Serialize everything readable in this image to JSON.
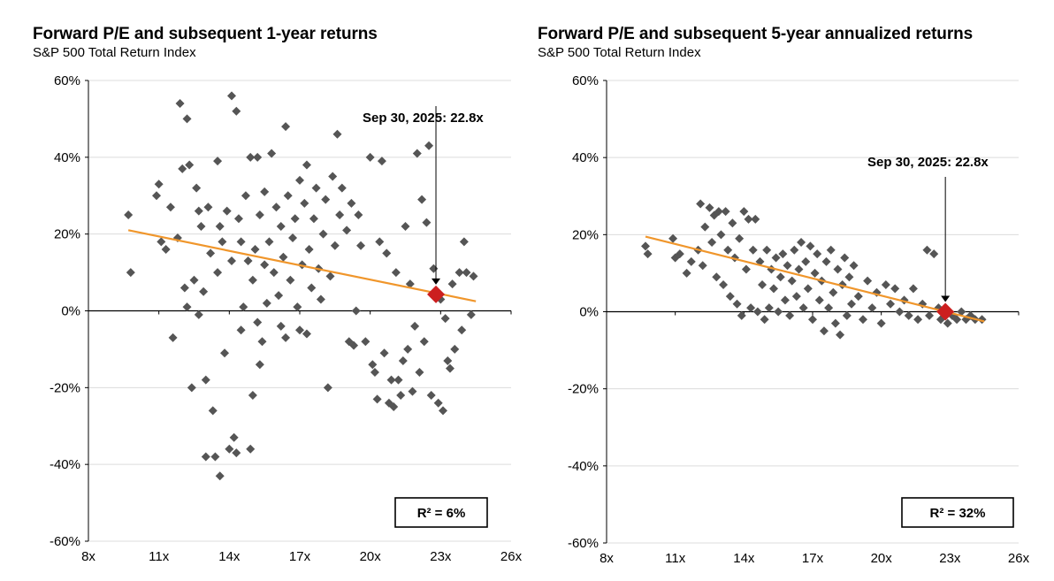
{
  "colors": {
    "points": "#555555",
    "trend": "#f0962b",
    "marker": "#cc1f1f",
    "axis": "#000000",
    "grid": "#dcdcdc"
  },
  "chart_data": [
    {
      "type": "scatter",
      "title": "Forward P/E and subsequent 1-year returns",
      "subtitle": "S&P 500 Total Return Index",
      "xlabel": "",
      "ylabel": "",
      "xlim": [
        8,
        26
      ],
      "ylim": [
        -60,
        60
      ],
      "x_ticks": [
        8,
        11,
        14,
        17,
        20,
        23,
        26
      ],
      "x_tick_labels": [
        "8x",
        "11x",
        "14x",
        "17x",
        "20x",
        "23x",
        "26x"
      ],
      "y_ticks": [
        60,
        40,
        20,
        0,
        -20,
        -40,
        -60
      ],
      "y_tick_labels": [
        "60%",
        "40%",
        "20%",
        "0%",
        "-20%",
        "-40%",
        "-60%"
      ],
      "grid": true,
      "trendline": {
        "x": [
          9.7,
          24.5
        ],
        "y": [
          21,
          2.5
        ]
      },
      "current": {
        "x": 22.8,
        "y": 4.3,
        "label": "Sep 30, 2025: 22.8x"
      },
      "r_squared_label": "R² = 6%",
      "points": [
        [
          9.7,
          25
        ],
        [
          9.8,
          10
        ],
        [
          10.9,
          30
        ],
        [
          11.0,
          33
        ],
        [
          11.1,
          18
        ],
        [
          11.3,
          16
        ],
        [
          11.5,
          27
        ],
        [
          11.6,
          -7
        ],
        [
          11.8,
          19
        ],
        [
          11.9,
          54
        ],
        [
          12.0,
          37
        ],
        [
          12.1,
          6
        ],
        [
          12.2,
          50
        ],
        [
          12.2,
          1
        ],
        [
          12.3,
          38
        ],
        [
          12.4,
          -20
        ],
        [
          12.5,
          8
        ],
        [
          12.6,
          32
        ],
        [
          12.7,
          26
        ],
        [
          12.7,
          -1
        ],
        [
          12.8,
          22
        ],
        [
          12.9,
          5
        ],
        [
          13.0,
          -18
        ],
        [
          13.0,
          -38
        ],
        [
          13.1,
          27
        ],
        [
          13.2,
          15
        ],
        [
          13.3,
          -26
        ],
        [
          13.4,
          -38
        ],
        [
          13.5,
          39
        ],
        [
          13.5,
          10
        ],
        [
          13.6,
          22
        ],
        [
          13.6,
          -43
        ],
        [
          13.7,
          18
        ],
        [
          13.8,
          -11
        ],
        [
          13.9,
          26
        ],
        [
          14.0,
          -36
        ],
        [
          14.1,
          56
        ],
        [
          14.1,
          13
        ],
        [
          14.2,
          -33
        ],
        [
          14.3,
          52
        ],
        [
          14.3,
          -37
        ],
        [
          14.4,
          24
        ],
        [
          14.5,
          -5
        ],
        [
          14.5,
          18
        ],
        [
          14.6,
          1
        ],
        [
          14.7,
          30
        ],
        [
          14.8,
          13
        ],
        [
          14.9,
          40
        ],
        [
          14.9,
          -36
        ],
        [
          15.0,
          -22
        ],
        [
          15.0,
          8
        ],
        [
          15.1,
          16
        ],
        [
          15.2,
          40
        ],
        [
          15.2,
          -3
        ],
        [
          15.3,
          -14
        ],
        [
          15.3,
          25
        ],
        [
          15.4,
          -8
        ],
        [
          15.5,
          31
        ],
        [
          15.5,
          12
        ],
        [
          15.6,
          2
        ],
        [
          15.7,
          18
        ],
        [
          15.8,
          41
        ],
        [
          15.9,
          10
        ],
        [
          16.0,
          27
        ],
        [
          16.1,
          4
        ],
        [
          16.2,
          22
        ],
        [
          16.2,
          -4
        ],
        [
          16.3,
          14
        ],
        [
          16.4,
          48
        ],
        [
          16.4,
          -7
        ],
        [
          16.5,
          30
        ],
        [
          16.6,
          8
        ],
        [
          16.7,
          19
        ],
        [
          16.8,
          24
        ],
        [
          16.9,
          1
        ],
        [
          17.0,
          34
        ],
        [
          17.0,
          -5
        ],
        [
          17.1,
          12
        ],
        [
          17.2,
          28
        ],
        [
          17.3,
          -6
        ],
        [
          17.3,
          38
        ],
        [
          17.4,
          16
        ],
        [
          17.5,
          6
        ],
        [
          17.6,
          24
        ],
        [
          17.7,
          32
        ],
        [
          17.8,
          11
        ],
        [
          17.9,
          3
        ],
        [
          18.0,
          20
        ],
        [
          18.1,
          29
        ],
        [
          18.2,
          -20
        ],
        [
          18.3,
          9
        ],
        [
          18.4,
          35
        ],
        [
          18.5,
          17
        ],
        [
          18.6,
          46
        ],
        [
          18.7,
          25
        ],
        [
          18.8,
          32
        ],
        [
          19.0,
          21
        ],
        [
          19.1,
          -8
        ],
        [
          19.2,
          28
        ],
        [
          19.3,
          -9
        ],
        [
          19.4,
          0
        ],
        [
          19.5,
          25
        ],
        [
          19.6,
          17
        ],
        [
          19.8,
          -8
        ],
        [
          20.0,
          40
        ],
        [
          20.1,
          -14
        ],
        [
          20.2,
          -16
        ],
        [
          20.3,
          -23
        ],
        [
          20.4,
          18
        ],
        [
          20.5,
          39
        ],
        [
          20.6,
          -11
        ],
        [
          20.7,
          15
        ],
        [
          20.8,
          -24
        ],
        [
          20.9,
          -18
        ],
        [
          21.0,
          -25
        ],
        [
          21.1,
          10
        ],
        [
          21.2,
          -18
        ],
        [
          21.3,
          -22
        ],
        [
          21.4,
          -13
        ],
        [
          21.5,
          22
        ],
        [
          21.6,
          -10
        ],
        [
          21.7,
          7
        ],
        [
          21.8,
          -21
        ],
        [
          21.9,
          -4
        ],
        [
          22.0,
          41
        ],
        [
          22.1,
          -16
        ],
        [
          22.2,
          29
        ],
        [
          22.3,
          -8
        ],
        [
          22.4,
          23
        ],
        [
          22.5,
          43
        ],
        [
          22.6,
          -22
        ],
        [
          22.7,
          11
        ],
        [
          22.9,
          -24
        ],
        [
          23.0,
          3
        ],
        [
          23.1,
          -26
        ],
        [
          23.2,
          -2
        ],
        [
          23.3,
          -13
        ],
        [
          23.4,
          -15
        ],
        [
          23.5,
          7
        ],
        [
          23.6,
          -10
        ],
        [
          23.8,
          10
        ],
        [
          23.9,
          -5
        ],
        [
          24.0,
          18
        ],
        [
          24.1,
          10
        ],
        [
          24.3,
          -1
        ],
        [
          24.4,
          9
        ]
      ]
    },
    {
      "type": "scatter",
      "title": "Forward P/E and subsequent 5-year annualized returns",
      "subtitle": "S&P 500 Total Return Index",
      "xlabel": "",
      "ylabel": "",
      "xlim": [
        8,
        26
      ],
      "ylim": [
        -60,
        60
      ],
      "x_ticks": [
        8,
        11,
        14,
        17,
        20,
        23,
        26
      ],
      "x_tick_labels": [
        "8x",
        "11x",
        "14x",
        "17x",
        "20x",
        "23x",
        "26x"
      ],
      "y_ticks": [
        60,
        40,
        20,
        0,
        -20,
        -40,
        -60
      ],
      "y_tick_labels": [
        "60%",
        "40%",
        "20%",
        "0%",
        "-20%",
        "-40%",
        "-60%"
      ],
      "grid": true,
      "trendline": {
        "x": [
          9.7,
          24.5
        ],
        "y": [
          19.5,
          -2.5
        ]
      },
      "current": {
        "x": 22.8,
        "y": 0,
        "label": "Sep 30, 2025: 22.8x"
      },
      "r_squared_label": "R² = 32%",
      "points": [
        [
          9.7,
          17
        ],
        [
          9.8,
          15
        ],
        [
          10.9,
          19
        ],
        [
          11.0,
          14
        ],
        [
          11.2,
          15
        ],
        [
          11.5,
          10
        ],
        [
          11.7,
          13
        ],
        [
          12.0,
          16
        ],
        [
          12.1,
          28
        ],
        [
          12.2,
          12
        ],
        [
          12.3,
          22
        ],
        [
          12.5,
          27
        ],
        [
          12.6,
          18
        ],
        [
          12.7,
          25
        ],
        [
          12.8,
          9
        ],
        [
          12.9,
          26
        ],
        [
          13.0,
          20
        ],
        [
          13.1,
          7
        ],
        [
          13.2,
          26
        ],
        [
          13.3,
          16
        ],
        [
          13.4,
          4
        ],
        [
          13.5,
          23
        ],
        [
          13.6,
          14
        ],
        [
          13.7,
          2
        ],
        [
          13.8,
          19
        ],
        [
          13.9,
          -1
        ],
        [
          14.0,
          26
        ],
        [
          14.1,
          11
        ],
        [
          14.2,
          24
        ],
        [
          14.3,
          1
        ],
        [
          14.4,
          16
        ],
        [
          14.5,
          24
        ],
        [
          14.6,
          0
        ],
        [
          14.7,
          13
        ],
        [
          14.8,
          7
        ],
        [
          14.9,
          -2
        ],
        [
          15.0,
          16
        ],
        [
          15.1,
          1
        ],
        [
          15.2,
          11
        ],
        [
          15.3,
          6
        ],
        [
          15.4,
          14
        ],
        [
          15.5,
          0
        ],
        [
          15.6,
          9
        ],
        [
          15.7,
          15
        ],
        [
          15.8,
          3
        ],
        [
          15.9,
          12
        ],
        [
          16.0,
          -1
        ],
        [
          16.1,
          8
        ],
        [
          16.2,
          16
        ],
        [
          16.3,
          4
        ],
        [
          16.4,
          11
        ],
        [
          16.5,
          18
        ],
        [
          16.6,
          1
        ],
        [
          16.7,
          13
        ],
        [
          16.8,
          6
        ],
        [
          16.9,
          17
        ],
        [
          17.0,
          -2
        ],
        [
          17.1,
          10
        ],
        [
          17.2,
          15
        ],
        [
          17.3,
          3
        ],
        [
          17.4,
          8
        ],
        [
          17.5,
          -5
        ],
        [
          17.6,
          13
        ],
        [
          17.7,
          1
        ],
        [
          17.8,
          16
        ],
        [
          17.9,
          5
        ],
        [
          18.0,
          -3
        ],
        [
          18.1,
          11
        ],
        [
          18.2,
          -6
        ],
        [
          18.3,
          7
        ],
        [
          18.4,
          14
        ],
        [
          18.5,
          -1
        ],
        [
          18.6,
          9
        ],
        [
          18.7,
          2
        ],
        [
          18.8,
          12
        ],
        [
          19.0,
          4
        ],
        [
          19.2,
          -2
        ],
        [
          19.4,
          8
        ],
        [
          19.6,
          1
        ],
        [
          19.8,
          5
        ],
        [
          20.0,
          -3
        ],
        [
          20.2,
          7
        ],
        [
          20.4,
          2
        ],
        [
          20.6,
          6
        ],
        [
          20.8,
          0
        ],
        [
          21.0,
          3
        ],
        [
          21.2,
          -1
        ],
        [
          21.4,
          6
        ],
        [
          21.6,
          -2
        ],
        [
          21.8,
          2
        ],
        [
          22.0,
          16
        ],
        [
          22.1,
          -1
        ],
        [
          22.3,
          15
        ],
        [
          22.5,
          1
        ],
        [
          22.6,
          -2
        ],
        [
          22.9,
          -3
        ],
        [
          23.1,
          -1
        ],
        [
          23.3,
          -2
        ],
        [
          23.5,
          0
        ],
        [
          23.7,
          -2
        ],
        [
          23.9,
          -1
        ],
        [
          24.1,
          -2
        ],
        [
          24.4,
          -2
        ]
      ]
    }
  ]
}
